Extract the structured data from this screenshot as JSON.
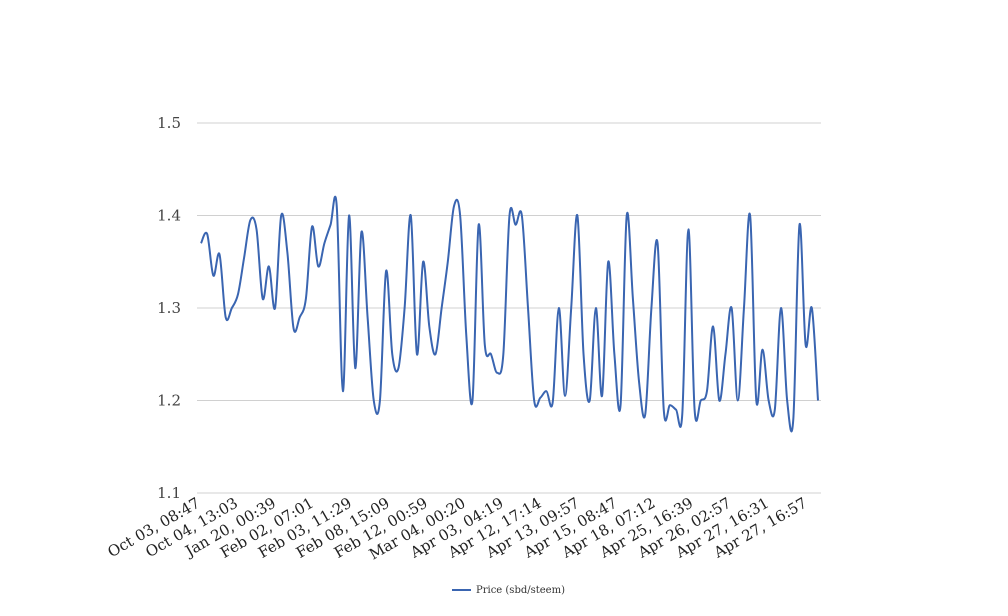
{
  "chart_data": {
    "type": "line",
    "title": "",
    "xlabel": "",
    "ylabel": "",
    "ylim": [
      1.1,
      1.5
    ],
    "yticks": [
      1.1,
      1.2,
      1.3,
      1.4,
      1.5
    ],
    "grid": true,
    "legend_position": "bottom-center",
    "x_tick_labels": [
      "Oct 03, 08:47",
      "Oct 04, 13:03",
      "Jan 20, 00:39",
      "Feb 02, 07:01",
      "Feb 03, 11:29",
      "Feb 08, 15:09",
      "Feb 12, 00:59",
      "Mar 04, 00:20",
      "Apr 03, 04:19",
      "Apr 12, 17:14",
      "Apr 13, 09:57",
      "Apr 15, 08:47",
      "Apr 18, 07:12",
      "Apr 25, 16:39",
      "Apr 26, 02:57",
      "Apr 27, 16:31",
      "Apr 27, 16:57"
    ],
    "series": [
      {
        "name": "Price (sbd/steem)",
        "color": "#3a65b1",
        "values": [
          1.37,
          1.38,
          1.335,
          1.358,
          1.29,
          1.3,
          1.315,
          1.355,
          1.395,
          1.385,
          1.31,
          1.345,
          1.3,
          1.4,
          1.36,
          1.278,
          1.29,
          1.31,
          1.388,
          1.345,
          1.37,
          1.39,
          1.41,
          1.21,
          1.4,
          1.235,
          1.382,
          1.29,
          1.2,
          1.2,
          1.34,
          1.25,
          1.235,
          1.3,
          1.4,
          1.25,
          1.35,
          1.28,
          1.25,
          1.3,
          1.35,
          1.41,
          1.4,
          1.27,
          1.2,
          1.39,
          1.26,
          1.25,
          1.23,
          1.25,
          1.4,
          1.39,
          1.4,
          1.3,
          1.2,
          1.203,
          1.21,
          1.198,
          1.3,
          1.205,
          1.3,
          1.4,
          1.25,
          1.2,
          1.3,
          1.205,
          1.35,
          1.25,
          1.195,
          1.4,
          1.31,
          1.22,
          1.185,
          1.3,
          1.37,
          1.19,
          1.195,
          1.19,
          1.185,
          1.385,
          1.19,
          1.2,
          1.21,
          1.28,
          1.2,
          1.25,
          1.3,
          1.2,
          1.3,
          1.4,
          1.2,
          1.255,
          1.2,
          1.19,
          1.3,
          1.2,
          1.18,
          1.39,
          1.26,
          1.3,
          1.2
        ]
      }
    ]
  }
}
